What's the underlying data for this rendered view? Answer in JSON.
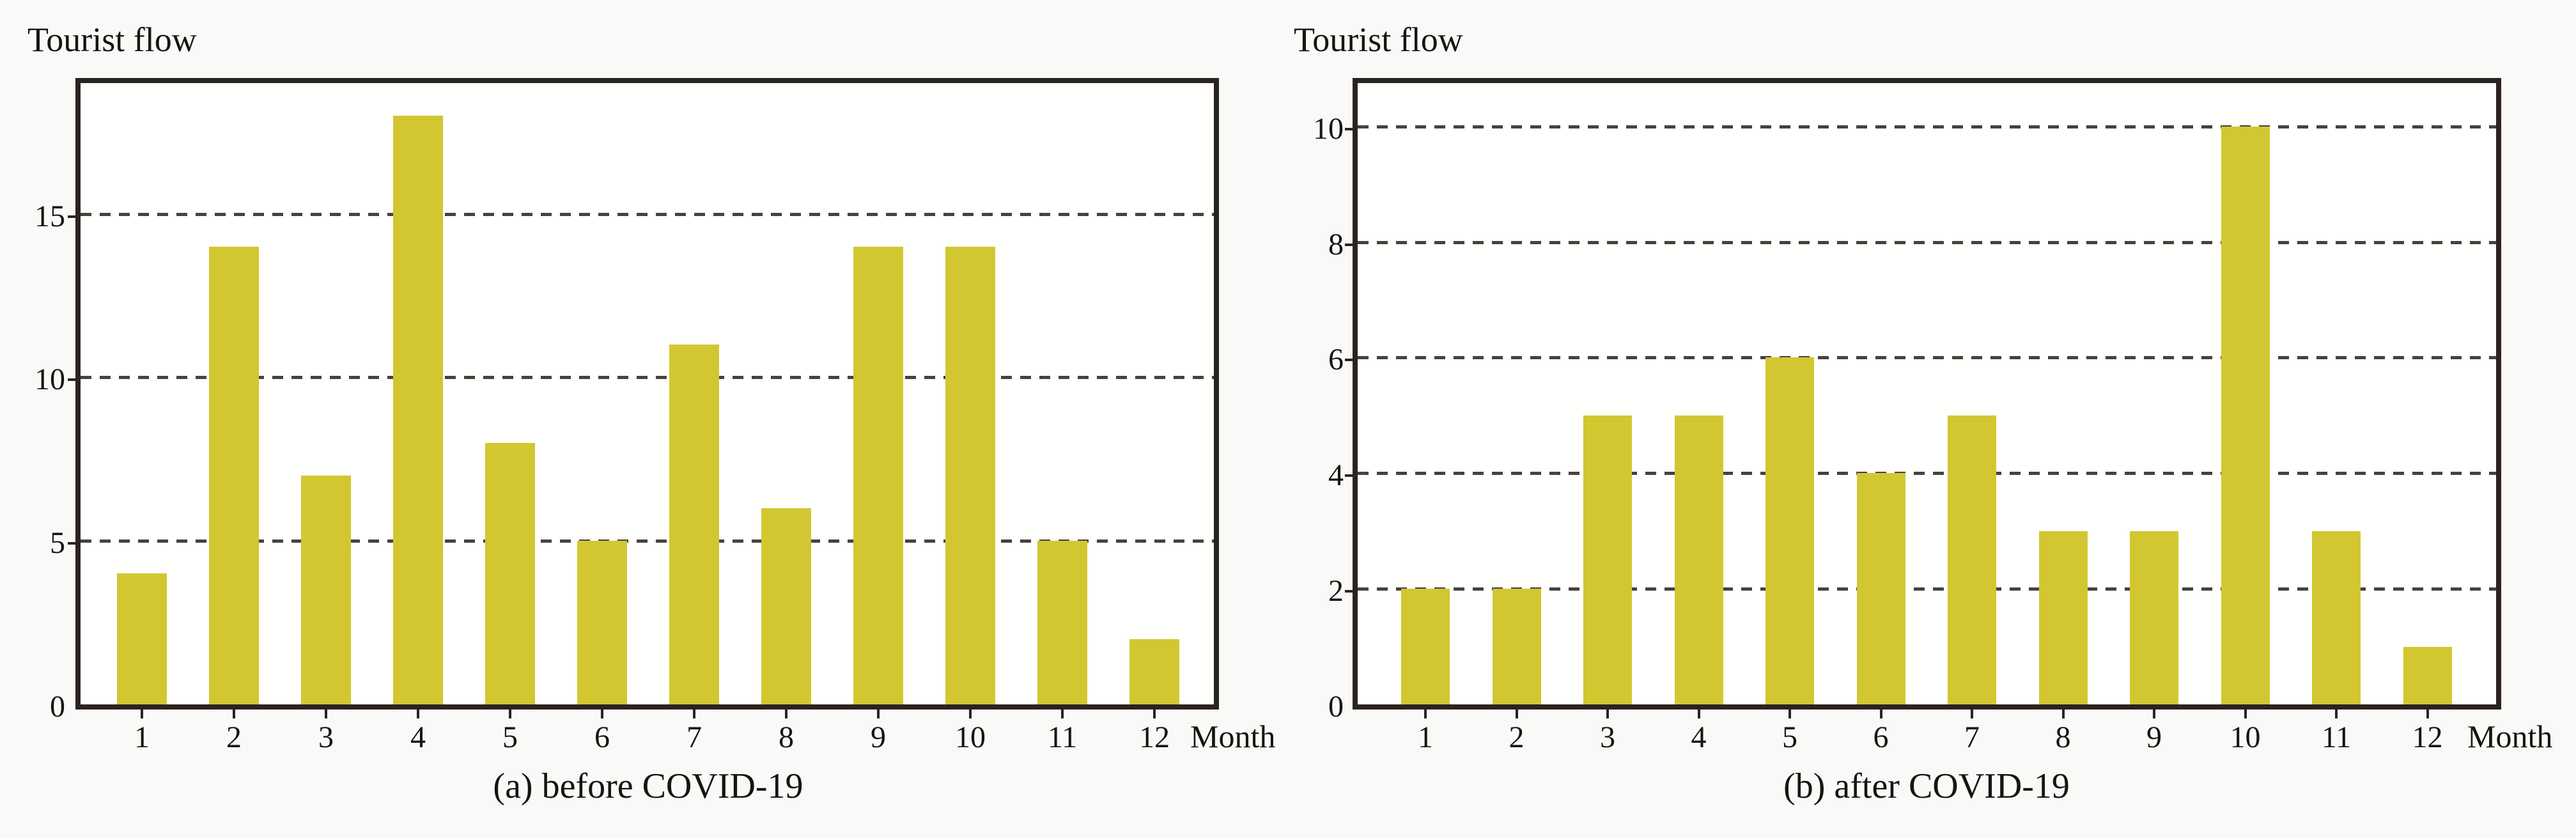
{
  "figure": {
    "background_color": "#f9f9f8",
    "bar_color": "#d2c731",
    "frame_color": "#2a2321",
    "gridline_color": "#474140",
    "text_color": "#171411"
  },
  "chart_data": [
    {
      "type": "bar",
      "title": "Tourist flow",
      "xlabel": "Month",
      "caption": "(a) before COVID-19",
      "categories": [
        "1",
        "2",
        "3",
        "4",
        "5",
        "6",
        "7",
        "8",
        "9",
        "10",
        "11",
        "12"
      ],
      "values": [
        4,
        14,
        7,
        18,
        8,
        5,
        11,
        6,
        14,
        14,
        5,
        2
      ],
      "yticks": [
        0,
        5,
        10,
        15
      ],
      "gridlines": [
        5,
        10,
        15
      ],
      "ylim": [
        0,
        19
      ],
      "grid": "horizontal-dashed",
      "legend": "none"
    },
    {
      "type": "bar",
      "title": "Tourist flow",
      "xlabel": "Month",
      "caption": "(b) after COVID-19",
      "categories": [
        "1",
        "2",
        "3",
        "4",
        "5",
        "6",
        "7",
        "8",
        "9",
        "10",
        "11",
        "12"
      ],
      "values": [
        2,
        2,
        5,
        5,
        6,
        4,
        5,
        3,
        3,
        10,
        3,
        1
      ],
      "yticks": [
        0,
        2,
        4,
        6,
        8,
        10
      ],
      "gridlines": [
        2,
        4,
        6,
        8,
        10
      ],
      "ylim": [
        0,
        10.75
      ],
      "grid": "horizontal-dashed",
      "legend": "none"
    }
  ]
}
